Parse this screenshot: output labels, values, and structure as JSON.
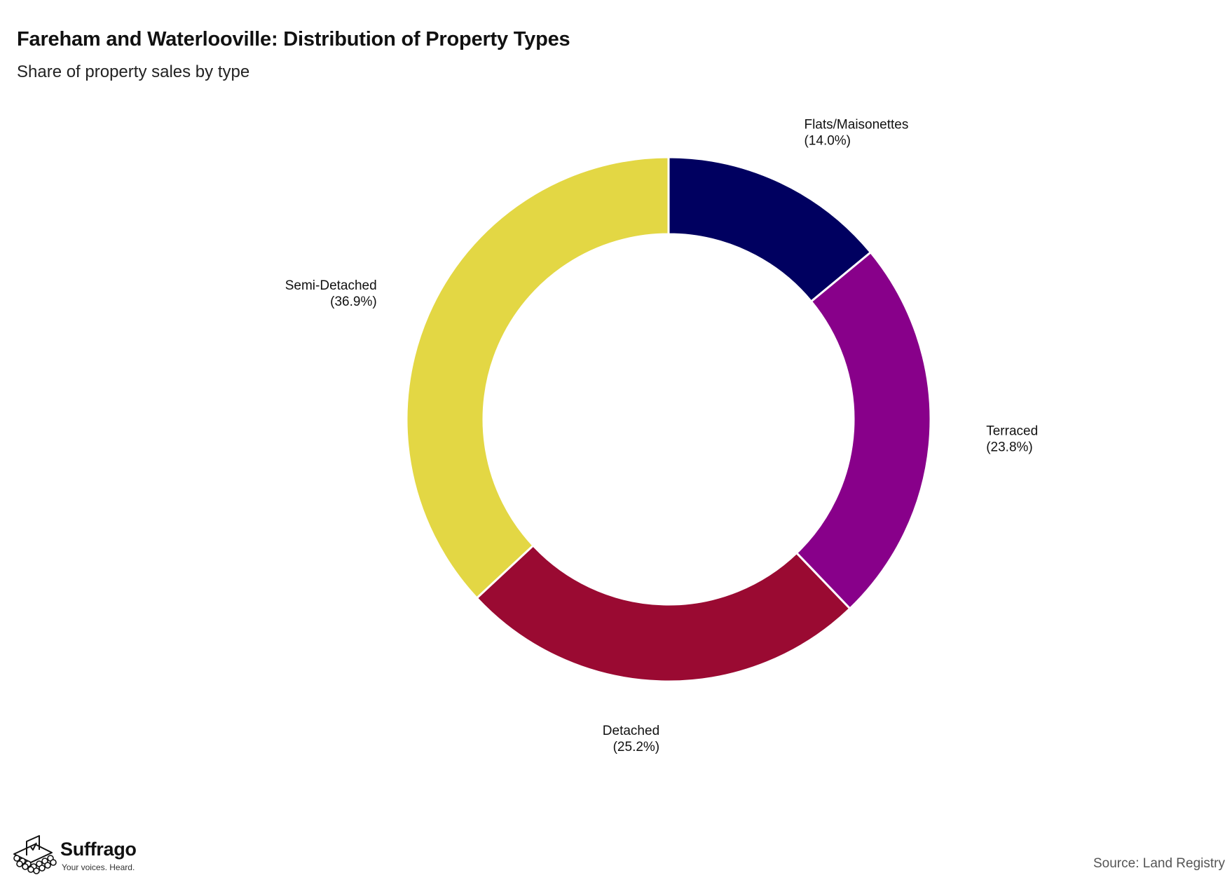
{
  "header": {
    "title": "Fareham and Waterlooville: Distribution of Property Types",
    "subtitle": "Share of property sales by type"
  },
  "chart_data": {
    "type": "pie",
    "variant": "donut",
    "title": "Fareham and Waterlooville: Distribution of Property Types",
    "subtitle": "Share of property sales by type",
    "unit": "%",
    "start_angle": "12 o'clock",
    "direction": "clockwise",
    "slices": [
      {
        "label": "Flats/Maisonettes",
        "value": 14.0,
        "display": "(14.0%)",
        "color": "#000060"
      },
      {
        "label": "Terraced",
        "value": 23.8,
        "display": "(23.8%)",
        "color": "#88008A"
      },
      {
        "label": "Detached",
        "value": 25.2,
        "display": "(25.2%)",
        "color": "#9A0A32"
      },
      {
        "label": "Semi-Detached",
        "value": 36.9,
        "display": "(36.9%)",
        "color": "#E3D744"
      }
    ]
  },
  "footer": {
    "logo_name": "Suffrago",
    "logo_tagline": "Your voices. Heard.",
    "logo_icon": "ballot-box-icon",
    "source": "Source: Land Registry"
  }
}
